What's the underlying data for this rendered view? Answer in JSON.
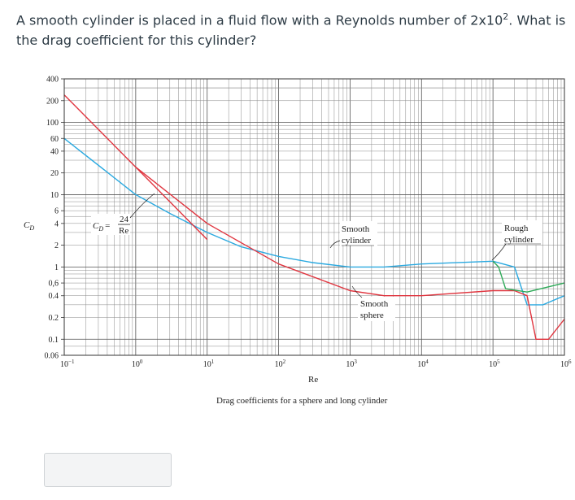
{
  "question": {
    "text_before": "A smooth cylinder is placed in a fluid flow with a Reynolds number of 2x10",
    "sup": "2",
    "text_after": ". What is the drag coefficient for this cylinder?"
  },
  "answer": {
    "value": ""
  },
  "chart_data": {
    "type": "line",
    "title": "",
    "caption": "Drag coefficients for a sphere and long cylinder",
    "xlabel": "Re",
    "ylabel": "C_D",
    "xscale": "log",
    "yscale": "log",
    "xlim": [
      0.1,
      1000000
    ],
    "ylim": [
      0.06,
      400
    ],
    "x_ticks": [
      {
        "value": 0.1,
        "base": "10",
        "exp": "−1"
      },
      {
        "value": 1,
        "base": "10",
        "exp": "0"
      },
      {
        "value": 10,
        "base": "10",
        "exp": "1"
      },
      {
        "value": 100,
        "base": "10",
        "exp": "2"
      },
      {
        "value": 1000,
        "base": "10",
        "exp": "3"
      },
      {
        "value": 10000,
        "base": "10",
        "exp": "4"
      },
      {
        "value": 100000,
        "base": "10",
        "exp": "5"
      },
      {
        "value": 1000000,
        "base": "10",
        "exp": "6"
      }
    ],
    "y_ticks": [
      {
        "value": 400,
        "label": "400"
      },
      {
        "value": 200,
        "label": "200"
      },
      {
        "value": 100,
        "label": "100"
      },
      {
        "value": 60,
        "label": "60"
      },
      {
        "value": 40,
        "label": "40"
      },
      {
        "value": 20,
        "label": "20"
      },
      {
        "value": 10,
        "label": "10"
      },
      {
        "value": 6,
        "label": "6"
      },
      {
        "value": 4,
        "label": "4"
      },
      {
        "value": 2,
        "label": "2"
      },
      {
        "value": 1,
        "label": "1"
      },
      {
        "value": 0.6,
        "label": "0,6"
      },
      {
        "value": 0.4,
        "label": "0.4"
      },
      {
        "value": 0.2,
        "label": "0.2"
      },
      {
        "value": 0.1,
        "label": "0.1"
      },
      {
        "value": 0.06,
        "label": "0.06"
      }
    ],
    "grid": true,
    "series": [
      {
        "name": "Smooth cylinder",
        "color": "#2aa9e0",
        "x": [
          0.1,
          1,
          3,
          10,
          30,
          100,
          300,
          1000,
          3000,
          10000,
          100000,
          200000,
          300000,
          500000,
          1000000
        ],
        "y": [
          60,
          10,
          5.5,
          3,
          1.9,
          1.4,
          1.15,
          1.0,
          1.0,
          1.1,
          1.2,
          1.0,
          0.3,
          0.3,
          0.4
        ]
      },
      {
        "name": "Smooth sphere",
        "color": "#e0353f",
        "x": [
          0.1,
          1,
          10,
          100,
          1000,
          3000,
          10000,
          100000,
          200000,
          300000,
          400000,
          600000,
          1000000
        ],
        "y": [
          240,
          24,
          4,
          1.1,
          0.47,
          0.4,
          0.4,
          0.47,
          0.47,
          0.4,
          0.1,
          0.1,
          0.19
        ]
      },
      {
        "name": "C_D = 24/Re",
        "color": "#e0353f",
        "x": [
          1,
          10
        ],
        "y": [
          24,
          2.4
        ]
      },
      {
        "name": "Rough cylinder",
        "color": "#2daa58",
        "x": [
          100000,
          120000,
          150000,
          300000,
          1000000
        ],
        "y": [
          1.2,
          1.0,
          0.5,
          0.45,
          0.6
        ]
      }
    ],
    "annotations": [
      {
        "text": "C_D = 24/Re",
        "target": "Stokes line"
      },
      {
        "text": "Smooth cylinder"
      },
      {
        "text": "Smooth sphere"
      },
      {
        "text": "Rough cylinder"
      }
    ],
    "axis_label_symbol": "C",
    "axis_label_sub": "D",
    "stokes_lhs": "C",
    "stokes_lhs_sub": "D",
    "stokes_eq": "=",
    "stokes_num": "24",
    "stokes_den": "Re",
    "label_smooth_l1": "Smooth",
    "label_cylinder_l2": "cylinder",
    "label_sphere_l2": "sphere",
    "label_rough_l1": "Rough"
  }
}
